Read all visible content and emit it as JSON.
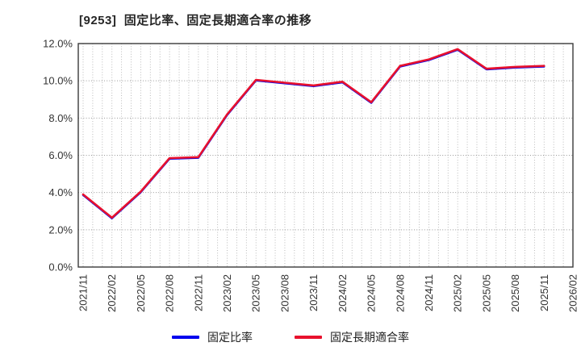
{
  "page": {
    "background": "#ffffff"
  },
  "chart_data": {
    "type": "line",
    "title": "[9253]  固定比率、固定長期適合率の推移",
    "xlabel": "",
    "ylabel": "",
    "ylim": [
      0,
      12
    ],
    "y_tick_step": 2,
    "y_tick_labels": [
      "0.0%",
      "2.0%",
      "4.0%",
      "6.0%",
      "8.0%",
      "10.0%",
      "12.0%"
    ],
    "x_tick_labels": [
      "2021/11",
      "2022/02",
      "2022/05",
      "2022/08",
      "2022/11",
      "2023/02",
      "2023/05",
      "2023/08",
      "2023/11",
      "2024/02",
      "2024/05",
      "2024/08",
      "2024/11",
      "2025/02",
      "2025/05",
      "2025/08",
      "2025/11",
      "2026/02"
    ],
    "months_total": 51,
    "grid": true,
    "minor_vertical_grid": "monthly",
    "legend_position": "bottom-center",
    "categories": [
      "2021/11",
      "2022/02",
      "2022/05",
      "2022/08",
      "2022/11",
      "2023/02",
      "2023/05",
      "2023/08",
      "2023/11",
      "2024/02",
      "2024/05",
      "2024/08",
      "2024/11",
      "2025/02",
      "2025/05",
      "2025/08",
      "2025/11"
    ],
    "series": [
      {
        "name": "固定比率",
        "color": "#0000EE",
        "values": [
          3.9,
          2.65,
          4.05,
          5.85,
          5.9,
          8.2,
          10.05,
          9.9,
          9.75,
          9.95,
          8.85,
          10.8,
          11.15,
          11.7,
          10.65,
          10.75,
          10.8
        ]
      },
      {
        "name": "固定長期適合率",
        "color": "#E8112D",
        "values": [
          3.9,
          2.65,
          4.05,
          5.85,
          5.9,
          8.2,
          10.05,
          9.9,
          9.75,
          9.95,
          8.85,
          10.8,
          11.15,
          11.7,
          10.65,
          10.75,
          10.8
        ]
      }
    ],
    "colors": {
      "grid": "#9a9a9a",
      "minor_grid": "#b3b3b3",
      "border": "#3a3a3a",
      "tick_text": "#333333"
    }
  }
}
